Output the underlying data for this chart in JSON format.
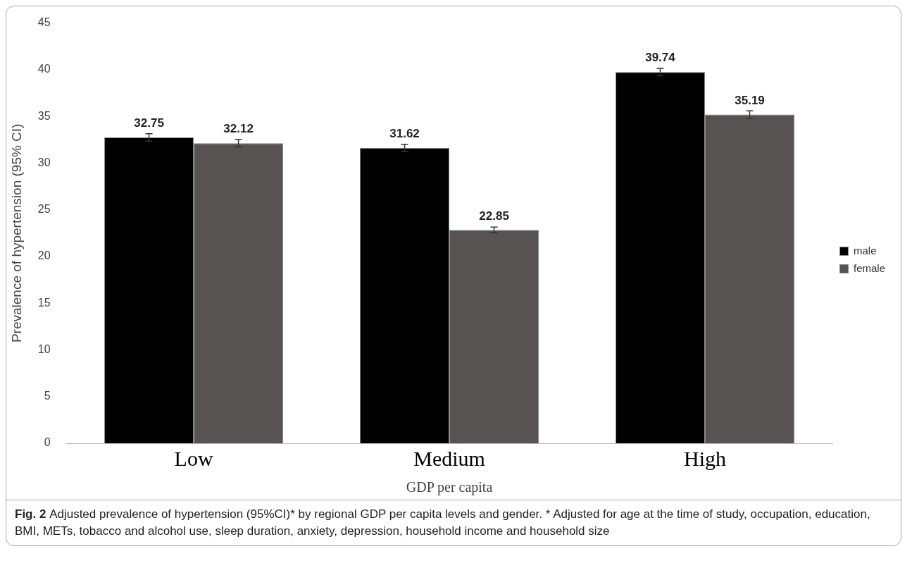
{
  "chart_data": {
    "type": "bar",
    "xlabel": "GDP per capita",
    "ylabel": "Prevalence of hypertension (95% CI)",
    "categories": [
      "Low",
      "Medium",
      "High"
    ],
    "series": [
      {
        "name": "male",
        "color": "#000000",
        "values": [
          32.75,
          31.62,
          39.74
        ],
        "errors": [
          0.4,
          0.4,
          0.4
        ]
      },
      {
        "name": "female",
        "color": "#575352",
        "values": [
          32.12,
          22.85,
          35.19
        ],
        "errors": [
          0.4,
          0.3,
          0.4
        ]
      }
    ],
    "ylim": [
      0,
      45
    ],
    "yticks": [
      0,
      5,
      10,
      15,
      20,
      25,
      30,
      35,
      40,
      45
    ],
    "grid": false,
    "legend": "right",
    "data_labels": true,
    "annotations": [
      "Fig. 2",
      "Adjusted prevalence of hypertension (95%CI)* by regional GDP per capita levels and gender. * Adjusted for age at the time of study, occupation, education, BMI, METs, tobacco and alcohol use, sleep duration, anxiety, depression, household income and household size"
    ]
  }
}
